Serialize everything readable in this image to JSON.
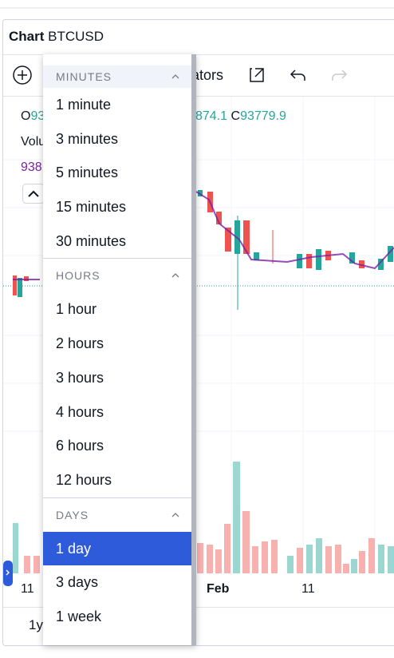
{
  "header": {
    "title": "Chart",
    "symbol": "BTCUSD"
  },
  "toolbar": {
    "label": "ators"
  },
  "legend": {
    "open_key": "O",
    "open_value": "93",
    "high_value": "874.1",
    "close_key": "C",
    "close_value": "93779.9",
    "volume_label": "Volu",
    "volume_value": "938"
  },
  "x_axis": {
    "labels": [
      "11",
      "Feb",
      "11"
    ]
  },
  "footer": {
    "range": "1y"
  },
  "menu": {
    "sections": [
      {
        "title": "MINUTES",
        "items": [
          "1 minute",
          "3 minutes",
          "5 minutes",
          "15 minutes",
          "30 minutes"
        ]
      },
      {
        "title": "HOURS",
        "items": [
          "1 hour",
          "2 hours",
          "3 hours",
          "4 hours",
          "6 hours",
          "12 hours"
        ]
      },
      {
        "title": "DAYS",
        "items": [
          "1 day",
          "3 days",
          "1 week"
        ]
      }
    ],
    "selected": "1 day"
  }
}
